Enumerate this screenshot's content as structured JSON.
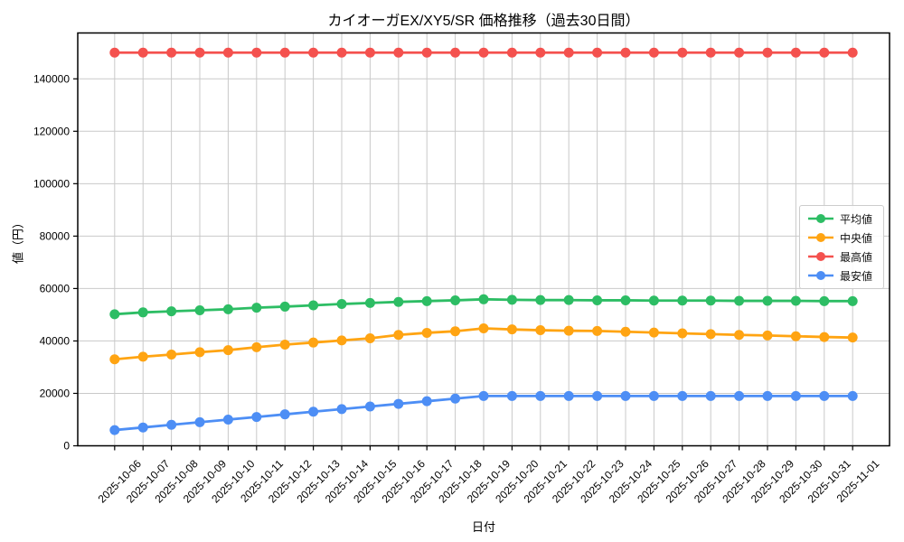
{
  "chart_data": {
    "type": "line",
    "title": "カイオーガEX/XY5/SR 価格推移（過去30日間）",
    "xlabel": "日付",
    "ylabel": "値（円）",
    "x": [
      "2025-10-06",
      "2025-10-07",
      "2025-10-08",
      "2025-10-09",
      "2025-10-10",
      "2025-10-11",
      "2025-10-12",
      "2025-10-13",
      "2025-10-14",
      "2025-10-15",
      "2025-10-16",
      "2025-10-17",
      "2025-10-18",
      "2025-10-19",
      "2025-10-20",
      "2025-10-21",
      "2025-10-22",
      "2025-10-23",
      "2025-10-24",
      "2025-10-25",
      "2025-10-26",
      "2025-10-27",
      "2025-10-28",
      "2025-10-29",
      "2025-10-30",
      "2025-10-31",
      "2025-11-01"
    ],
    "ylim": [
      0,
      157500
    ],
    "yticks": [
      0,
      20000,
      40000,
      60000,
      80000,
      100000,
      120000,
      140000
    ],
    "grid": true,
    "grid_color": "#c9c9c9",
    "legend_position": "center-right",
    "series": [
      {
        "name": "平均値",
        "color": "#2dbd64",
        "values": [
          50200,
          50900,
          51300,
          51700,
          52100,
          52700,
          53100,
          53600,
          54100,
          54500,
          54900,
          55200,
          55500,
          55900,
          55700,
          55600,
          55600,
          55500,
          55500,
          55400,
          55400,
          55400,
          55300,
          55300,
          55300,
          55200,
          55200
        ]
      },
      {
        "name": "中央値",
        "color": "#ffa412",
        "values": [
          33000,
          34000,
          34800,
          35700,
          36500,
          37600,
          38600,
          39400,
          40200,
          41000,
          42300,
          43100,
          43700,
          44800,
          44400,
          44100,
          43900,
          43800,
          43500,
          43200,
          42900,
          42600,
          42300,
          42100,
          41800,
          41500,
          41300
        ]
      },
      {
        "name": "最高値",
        "color": "#f4514e",
        "values": [
          150000,
          150000,
          150000,
          150000,
          150000,
          150000,
          150000,
          150000,
          150000,
          150000,
          150000,
          150000,
          150000,
          150000,
          150000,
          150000,
          150000,
          150000,
          150000,
          150000,
          150000,
          150000,
          150000,
          150000,
          150000,
          150000,
          150000
        ]
      },
      {
        "name": "最安値",
        "color": "#4d8ef5",
        "values": [
          6000,
          7000,
          8000,
          9000,
          10000,
          11000,
          12000,
          13000,
          14000,
          15000,
          16000,
          17000,
          18000,
          19000,
          19000,
          19000,
          19000,
          19000,
          19000,
          19000,
          19000,
          19000,
          19000,
          19000,
          19000,
          19000,
          19000
        ]
      }
    ]
  }
}
